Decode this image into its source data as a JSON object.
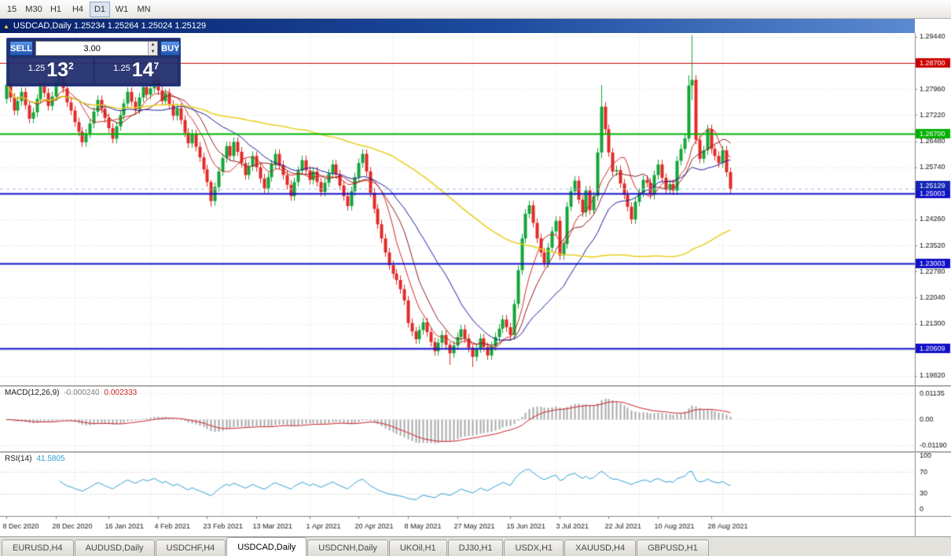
{
  "toolbar": {
    "timeframes": [
      {
        "label": "15",
        "active": false
      },
      {
        "label": "M30",
        "active": false
      },
      {
        "label": "H1",
        "active": false
      },
      {
        "label": "H4",
        "active": false
      },
      {
        "label": "D1",
        "active": true
      },
      {
        "label": "W1",
        "active": false
      },
      {
        "label": "MN",
        "active": false
      }
    ]
  },
  "title_bar": {
    "icon": "▲",
    "title": "USDCAD,Daily 1.25234 1.25264 1.25024 1.25129"
  },
  "trade_panel": {
    "sell_label": "SELL",
    "buy_label": "BUY",
    "amount": "3.00",
    "sell_price": {
      "base": "1.25",
      "big": "13",
      "sup": "2"
    },
    "buy_price": {
      "base": "1.25",
      "big": "14",
      "sup": "7"
    }
  },
  "indicators": {
    "macd": {
      "label": "MACD(12,26,9)",
      "value_main": "-0.000240",
      "value_signal": "0.002333",
      "scale_labels": [
        "0.01135",
        "0.00",
        "-0.01190"
      ],
      "fast": 12,
      "slow": 26,
      "signal": 9
    },
    "rsi": {
      "label": "RSI(14)",
      "value": "41.5805",
      "period": 14,
      "scale_labels": [
        "100",
        "70",
        "30",
        "0"
      ],
      "levels": [
        70,
        30
      ]
    }
  },
  "chart_data": {
    "type": "candlestick",
    "symbol": "USDCAD",
    "period": "Daily",
    "ohlc": {
      "open": 1.25234,
      "high": 1.25264,
      "low": 1.25024,
      "close": 1.25129
    },
    "view_max": 1.2955,
    "view_min": 1.1955,
    "price_ticks": [
      1.2944,
      1.287,
      1.2796,
      1.2722,
      1.2648,
      1.2574,
      1.25,
      1.2426,
      1.2352,
      1.2278,
      1.2204,
      1.213,
      1.2056,
      1.1982
    ],
    "first_open": 1.2768,
    "default_wick": 0.0013,
    "closes": [
      1.2809,
      1.2772,
      1.2735,
      1.2762,
      1.2788,
      1.275,
      1.2712,
      1.273,
      1.2768,
      1.2806,
      1.2785,
      1.2748,
      1.2775,
      1.2818,
      1.2842,
      1.2798,
      1.2758,
      1.2735,
      1.2702,
      1.2675,
      1.2645,
      1.267,
      1.2698,
      1.2732,
      1.2765,
      1.274,
      1.2714,
      1.2685,
      1.2655,
      1.269,
      1.2722,
      1.2755,
      1.2788,
      1.276,
      1.2738,
      1.2772,
      1.2802,
      1.278,
      1.2798,
      1.2822,
      1.2792,
      1.2762,
      1.2784,
      1.2752,
      1.272,
      1.2742,
      1.2708,
      1.2672,
      1.2642,
      1.2668,
      1.2632,
      1.2602,
      1.2568,
      1.2532,
      1.2478,
      1.2518,
      1.2562,
      1.26,
      1.2634,
      1.2606,
      1.2646,
      1.2618,
      1.2586,
      1.2552,
      1.2576,
      1.2606,
      1.2574,
      1.2542,
      1.2514,
      1.2546,
      1.2582,
      1.2612,
      1.258,
      1.2552,
      1.2524,
      1.2492,
      1.2532,
      1.2564,
      1.2594,
      1.2565,
      1.2538,
      1.2562,
      1.2532,
      1.2504,
      1.253,
      1.2556,
      1.2582,
      1.2554,
      1.2522,
      1.2492,
      1.2464,
      1.2506,
      1.2546,
      1.2586,
      1.2612,
      1.2562,
      1.2502,
      1.2456,
      1.2412,
      1.2372,
      1.2332,
      1.2296,
      1.2272,
      1.2254,
      1.2228,
      1.2196,
      1.2132,
      1.2108,
      1.2086,
      1.2112,
      1.2134,
      1.2106,
      1.2078,
      1.2052,
      1.2076,
      1.2098,
      1.207,
      1.2046,
      1.2068,
      1.2092,
      1.2114,
      1.2088,
      1.2062,
      1.2036,
      1.206,
      1.2088,
      1.2064,
      1.204,
      1.2066,
      1.2092,
      1.2116,
      1.2142,
      1.212,
      1.2098,
      1.2186,
      1.2282,
      1.2372,
      1.2442,
      1.2466,
      1.2416,
      1.2372,
      1.2332,
      1.2302,
      1.2346,
      1.2392,
      1.2422,
      1.2324,
      1.2356,
      1.2462,
      1.2506,
      1.2536,
      1.2482,
      1.2446,
      1.2508,
      1.2452,
      1.2492,
      1.2616,
      1.2746,
      1.2682,
      1.2616,
      1.2562,
      1.2566,
      1.2528,
      1.2496,
      1.2462,
      1.2426,
      1.2476,
      1.2502,
      1.2538,
      1.253,
      1.2496,
      1.2552,
      1.2582,
      1.2544,
      1.2512,
      1.2526,
      1.2508,
      1.2592,
      1.2626,
      1.2656,
      1.2806,
      1.2822,
      1.2652,
      1.2598,
      1.2622,
      1.2682,
      1.2626,
      1.2606,
      1.2586,
      1.2622,
      1.256,
      1.25129
    ],
    "overrides": {
      "54": [
        1.2532,
        1.2538,
        1.2462,
        1.2478
      ],
      "117": [
        1.207,
        1.2078,
        1.2013,
        1.2046
      ],
      "123": [
        1.2062,
        1.207,
        1.2007,
        1.2036
      ],
      "157": [
        1.2616,
        1.2807,
        1.26,
        1.2746
      ],
      "180": [
        1.2656,
        1.2835,
        1.2646,
        1.2806
      ],
      "181": [
        1.2806,
        1.2949,
        1.2765,
        1.2822
      ]
    },
    "hlines": [
      {
        "price": 1.287,
        "label": "1.28700",
        "color": "#cc0000",
        "width": 1
      },
      {
        "price": 1.267,
        "label": "1.26700",
        "color": "#00b200",
        "width": 2
      },
      {
        "price": 1.25003,
        "label": "1.25003",
        "color": "#1010c8",
        "width": 2
      },
      {
        "price": 1.23003,
        "label": "1.23003",
        "color": "#1010c8",
        "width": 2
      },
      {
        "price": 1.20609,
        "label": "1.20609",
        "color": "#1010c8",
        "width": 2
      }
    ],
    "current_price": {
      "value": 1.25129,
      "label": "1.25129",
      "color": "#1226b5"
    },
    "moving_averages": [
      {
        "period": 8,
        "color": "#d12b24",
        "width": 1
      },
      {
        "period": 13,
        "color": "#8e1e1e",
        "width": 1
      },
      {
        "period": 25,
        "color": "#1b1b9e",
        "width": 1
      },
      {
        "period": 80,
        "color": "#e9ce1d",
        "width": 1.5
      }
    ],
    "date_labels": [
      {
        "label": "8 Dec 2020",
        "index": 0
      },
      {
        "label": "28 Dec 2020",
        "index": 13
      },
      {
        "label": "16 Jan 2021",
        "index": 27
      },
      {
        "label": "4 Feb 2021",
        "index": 40
      },
      {
        "label": "23 Feb 2021",
        "index": 53
      },
      {
        "label": "13 Mar 2021",
        "index": 66
      },
      {
        "label": "1 Apr 2021",
        "index": 80
      },
      {
        "label": "20 Apr 2021",
        "index": 93
      },
      {
        "label": "8 May 2021",
        "index": 106
      },
      {
        "label": "27 May 2021",
        "index": 119
      },
      {
        "label": "15 Jun 2021",
        "index": 133
      },
      {
        "label": "3 Jul 2021",
        "index": 146
      },
      {
        "label": "22 Jul 2021",
        "index": 159
      },
      {
        "label": "10 Aug 2021",
        "index": 172
      },
      {
        "label": "28 Aug 2021",
        "index": 186
      }
    ],
    "month_breaks": [
      18,
      38,
      57,
      80,
      102,
      123,
      145,
      167,
      189
    ]
  },
  "tabs": {
    "active_index": 3,
    "items": [
      {
        "label": "EURUSD,H4"
      },
      {
        "label": "AUDUSD,Daily"
      },
      {
        "label": "USDCHF,H4"
      },
      {
        "label": "USDCAD,Daily"
      },
      {
        "label": "USDCNH,Daily"
      },
      {
        "label": "UKOil,H1"
      },
      {
        "label": "DJ30,H1"
      },
      {
        "label": "USDX,H1"
      },
      {
        "label": "XAUUSD,H4"
      },
      {
        "label": "GBPUSD,H1"
      }
    ]
  },
  "colors": {
    "up": "#13a538",
    "down": "#e22a28",
    "grid": "#dcdcdc",
    "month_grid": "#e2e2e2",
    "bid_line": "#a8c0e8",
    "macd_hist": "#a9a9a9",
    "macd_signal": "#cc2026",
    "rsi_line": "#2f9fd0",
    "level_dots": "#c4c4c4",
    "scale_text": "#111111",
    "date_text": "#222222"
  }
}
